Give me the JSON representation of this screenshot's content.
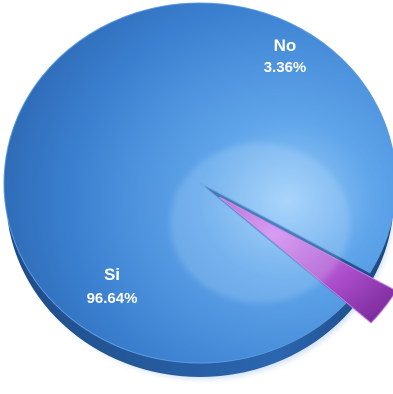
{
  "chart_data": {
    "type": "pie",
    "title": "",
    "slices": [
      {
        "name": "Si",
        "value": 96.64,
        "label": "96.64%",
        "color": "#3f86d4"
      },
      {
        "name": "No",
        "value": 3.36,
        "label": "3.36%",
        "color": "#b14fd0"
      }
    ],
    "exploded": "No",
    "style": "3d-glossy",
    "legend": "none"
  }
}
